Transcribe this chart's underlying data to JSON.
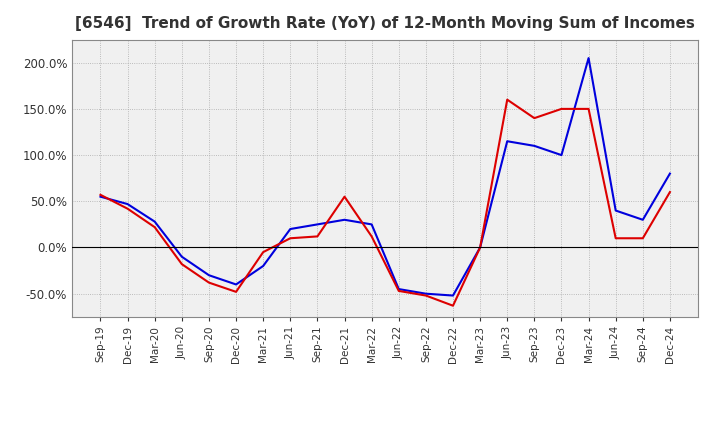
{
  "title": "[6546]  Trend of Growth Rate (YoY) of 12-Month Moving Sum of Incomes",
  "title_fontsize": 11,
  "ylim": [
    -75,
    225
  ],
  "yticks": [
    -50,
    0,
    50,
    100,
    150,
    200
  ],
  "background_color": "#ffffff",
  "plot_bg_color": "#f0f0f0",
  "grid_color": "#aaaaaa",
  "ordinary_color": "#0000dd",
  "net_color": "#dd0000",
  "x_labels": [
    "Sep-19",
    "Dec-19",
    "Mar-20",
    "Jun-20",
    "Sep-20",
    "Dec-20",
    "Mar-21",
    "Jun-21",
    "Sep-21",
    "Dec-21",
    "Mar-22",
    "Jun-22",
    "Sep-22",
    "Dec-22",
    "Mar-23",
    "Jun-23",
    "Sep-23",
    "Dec-23",
    "Mar-24",
    "Jun-24",
    "Sep-24",
    "Dec-24"
  ],
  "ordinary_income": [
    55,
    47,
    28,
    -10,
    -30,
    -40,
    -20,
    20,
    25,
    30,
    25,
    -45,
    -50,
    -52,
    0,
    115,
    110,
    100,
    205,
    40,
    30,
    80
  ],
  "net_income": [
    57,
    42,
    22,
    -18,
    -38,
    -48,
    -5,
    10,
    12,
    55,
    12,
    -47,
    -52,
    -63,
    0,
    160,
    140,
    150,
    150,
    10,
    10,
    60
  ]
}
